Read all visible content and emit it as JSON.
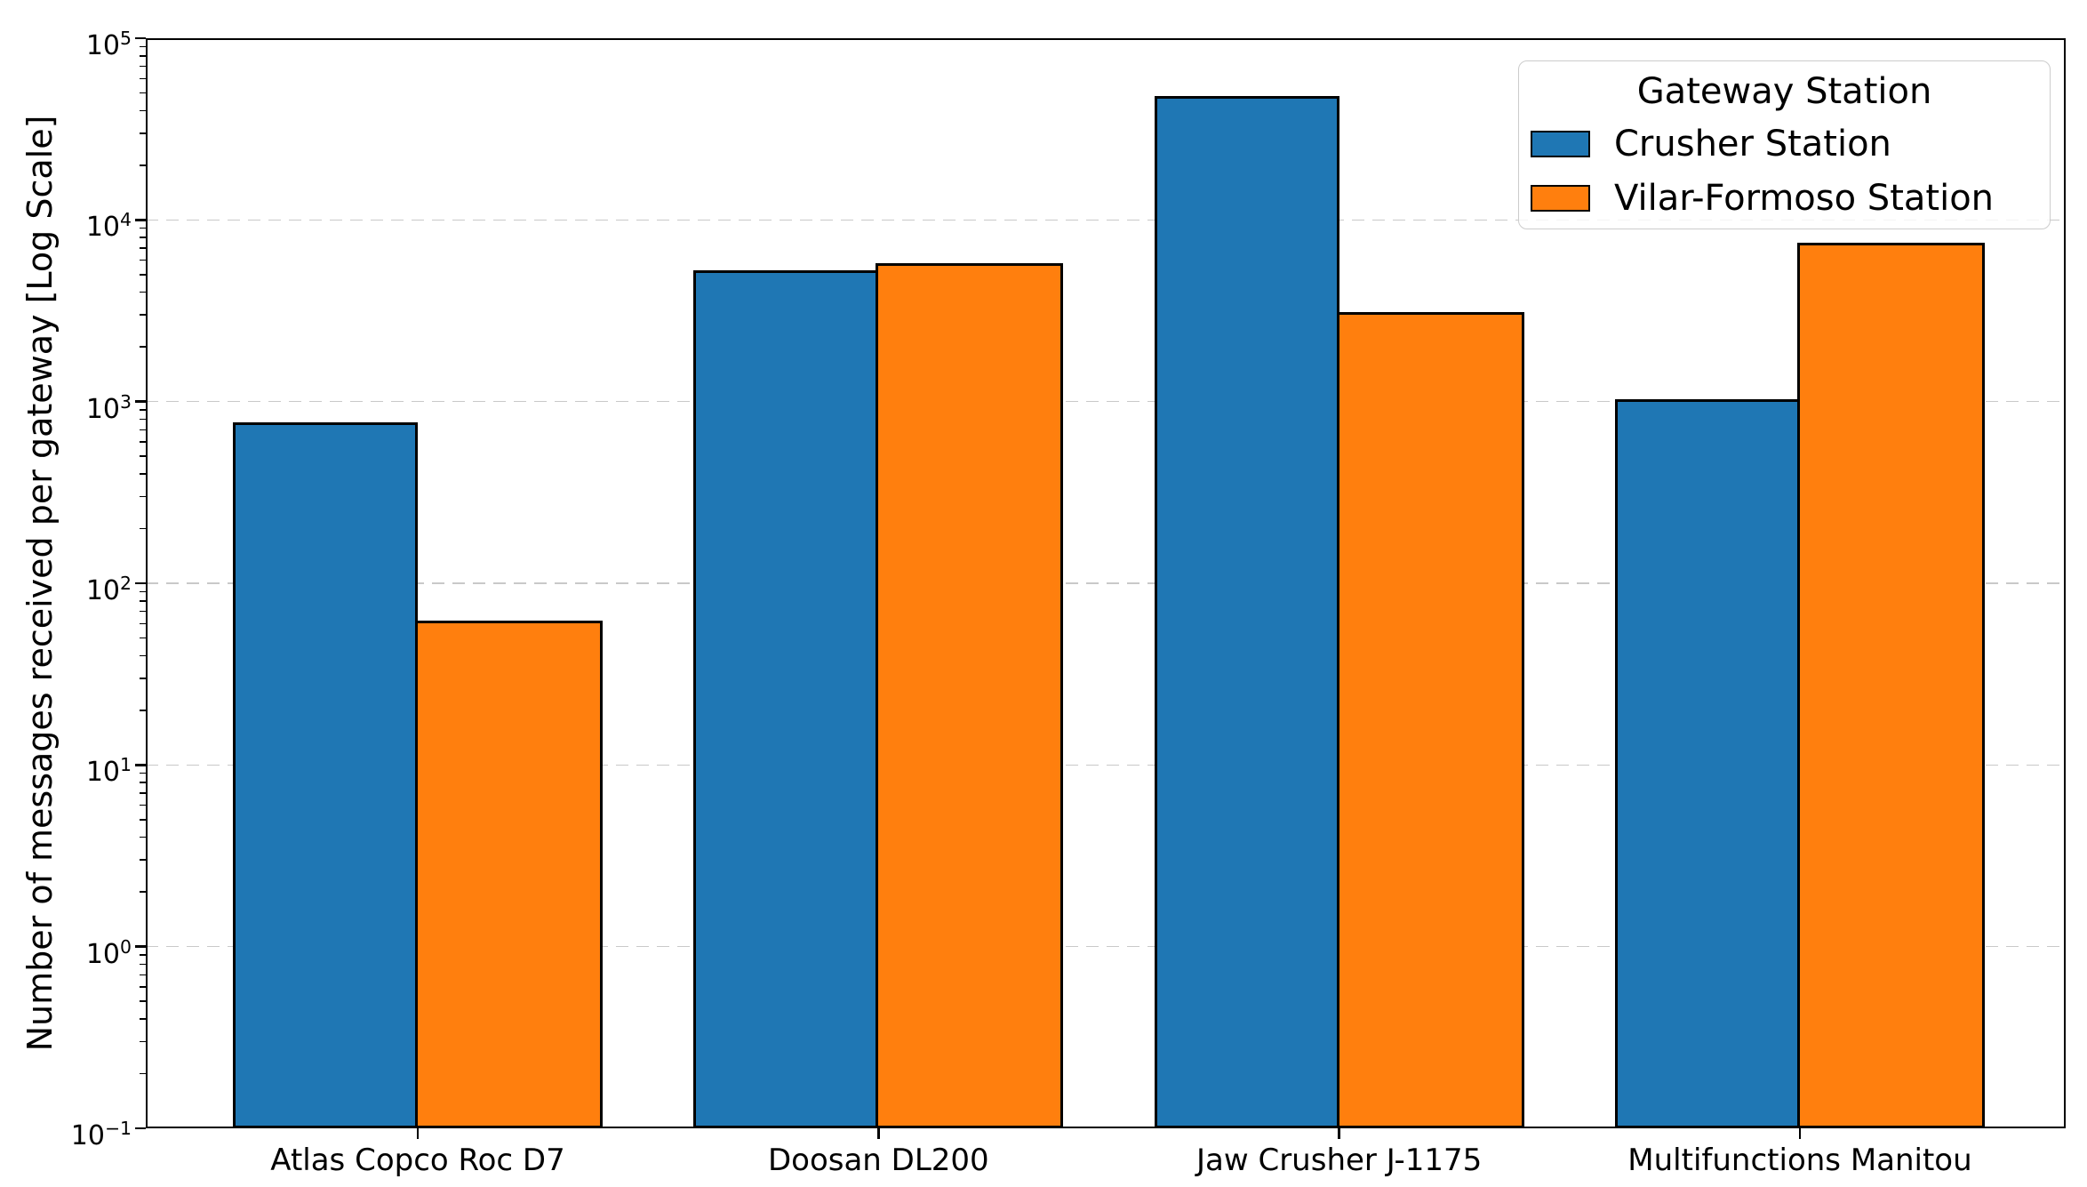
{
  "chart_data": {
    "type": "bar",
    "title": "",
    "xlabel": "",
    "ylabel": "Number of messages received per gateway [Log Scale]",
    "y_scale": "log",
    "ylim": [
      0.1,
      100000
    ],
    "y_tick_exponents": [
      5,
      4,
      3,
      2,
      1,
      0,
      -1
    ],
    "grid": {
      "axis": "y",
      "style": "dashed",
      "color": "#c9c9c9"
    },
    "legend_position": "upper right",
    "legend": {
      "title": "Gateway Station",
      "entries": [
        "Crusher Station",
        "Vilar-Formoso Station"
      ]
    },
    "categories": [
      "Atlas Copco Roc D7",
      "Doosan DL200",
      "Jaw Crusher J-1175",
      "Multifunctions Manitou"
    ],
    "series": [
      {
        "name": "Crusher Station",
        "color": "#1f77b4",
        "values": [
          770,
          5300,
          48000,
          1030
        ]
      },
      {
        "name": "Vilar-Formoso Station",
        "color": "#ff7f0e",
        "values": [
          62,
          5800,
          3100,
          7500
        ]
      }
    ],
    "bar_edge_color": "#000000"
  }
}
